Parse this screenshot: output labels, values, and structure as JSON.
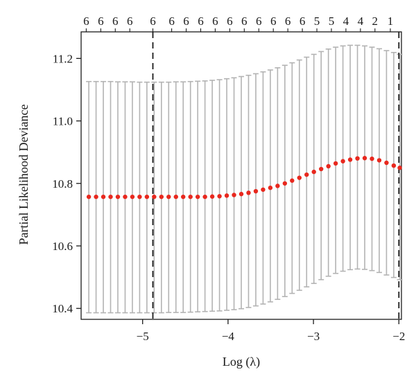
{
  "chart_data": {
    "type": "scatter",
    "title": "",
    "xlabel": "Log (λ)",
    "ylabel": "Partial Likelihood Deviance",
    "xlim": [
      -5.72,
      -1.97
    ],
    "ylim": [
      10.365,
      11.285
    ],
    "x_ticks": [
      -5,
      -4,
      -3,
      -2
    ],
    "x_tick_labels": [
      "−5",
      "−4",
      "−3",
      "−2"
    ],
    "y_ticks": [
      10.4,
      10.6,
      10.8,
      11.0,
      11.2
    ],
    "y_tick_labels": [
      "10.4",
      "10.6",
      "10.8",
      "11.0",
      "11.2"
    ],
    "top_axis_labels": [
      {
        "x": -5.66,
        "label": "6"
      },
      {
        "x": -5.49,
        "label": "6"
      },
      {
        "x": -5.32,
        "label": "6"
      },
      {
        "x": -5.15,
        "label": "6"
      },
      {
        "x": -4.88,
        "label": "6"
      },
      {
        "x": -4.66,
        "label": "6"
      },
      {
        "x": -4.49,
        "label": "6"
      },
      {
        "x": -4.32,
        "label": "6"
      },
      {
        "x": -4.15,
        "label": "6"
      },
      {
        "x": -3.98,
        "label": "6"
      },
      {
        "x": -3.81,
        "label": "6"
      },
      {
        "x": -3.64,
        "label": "6"
      },
      {
        "x": -3.47,
        "label": "6"
      },
      {
        "x": -3.3,
        "label": "6"
      },
      {
        "x": -3.13,
        "label": "6"
      },
      {
        "x": -2.96,
        "label": "5"
      },
      {
        "x": -2.79,
        "label": "5"
      },
      {
        "x": -2.62,
        "label": "4"
      },
      {
        "x": -2.45,
        "label": "4"
      },
      {
        "x": -2.28,
        "label": "2"
      },
      {
        "x": -2.1,
        "label": "1"
      }
    ],
    "vlines": [
      -4.88,
      -2.0
    ],
    "series": [
      {
        "x": [
          -5.63,
          -5.545,
          -5.46,
          -5.375,
          -5.29,
          -5.205,
          -5.12,
          -5.035,
          -4.95,
          -4.865,
          -4.78,
          -4.695,
          -4.61,
          -4.525,
          -4.44,
          -4.355,
          -4.27,
          -4.185,
          -4.1,
          -4.015,
          -3.93,
          -3.845,
          -3.76,
          -3.675,
          -3.59,
          -3.505,
          -3.42,
          -3.335,
          -3.25,
          -3.165,
          -3.08,
          -2.995,
          -2.91,
          -2.825,
          -2.74,
          -2.655,
          -2.57,
          -2.485,
          -2.4,
          -2.315,
          -2.23,
          -2.145,
          -2.06,
          -1.99
        ],
        "y": [
          10.757,
          10.757,
          10.757,
          10.757,
          10.757,
          10.757,
          10.757,
          10.757,
          10.757,
          10.757,
          10.757,
          10.757,
          10.757,
          10.757,
          10.757,
          10.757,
          10.757,
          10.758,
          10.759,
          10.761,
          10.763,
          10.766,
          10.77,
          10.775,
          10.78,
          10.786,
          10.792,
          10.8,
          10.809,
          10.818,
          10.828,
          10.837,
          10.846,
          10.855,
          10.864,
          10.871,
          10.876,
          10.88,
          10.881,
          10.879,
          10.874,
          10.866,
          10.857,
          10.85
        ],
        "upper": [
          11.126,
          11.126,
          11.126,
          11.126,
          11.125,
          11.125,
          11.125,
          11.124,
          11.124,
          11.124,
          11.124,
          11.124,
          11.125,
          11.125,
          11.126,
          11.127,
          11.128,
          11.13,
          11.132,
          11.135,
          11.138,
          11.142,
          11.146,
          11.151,
          11.157,
          11.163,
          11.17,
          11.178,
          11.186,
          11.195,
          11.204,
          11.213,
          11.222,
          11.23,
          11.236,
          11.24,
          11.242,
          11.242,
          11.24,
          11.236,
          11.231,
          11.225,
          11.219,
          11.213
        ],
        "lower": [
          10.386,
          10.386,
          10.386,
          10.386,
          10.386,
          10.386,
          10.386,
          10.386,
          10.386,
          10.386,
          10.386,
          10.387,
          10.387,
          10.387,
          10.388,
          10.389,
          10.39,
          10.391,
          10.392,
          10.394,
          10.396,
          10.399,
          10.403,
          10.408,
          10.414,
          10.421,
          10.429,
          10.438,
          10.448,
          10.458,
          10.469,
          10.48,
          10.492,
          10.503,
          10.512,
          10.519,
          10.524,
          10.526,
          10.525,
          10.521,
          10.515,
          10.507,
          10.499,
          10.492
        ]
      }
    ],
    "colors": {
      "points": "#e8281e",
      "errorbars": "#b3b3b3",
      "axes": "#1a1a1a",
      "vlines": "#1a1a1a"
    },
    "grid": false,
    "legend": "none"
  }
}
